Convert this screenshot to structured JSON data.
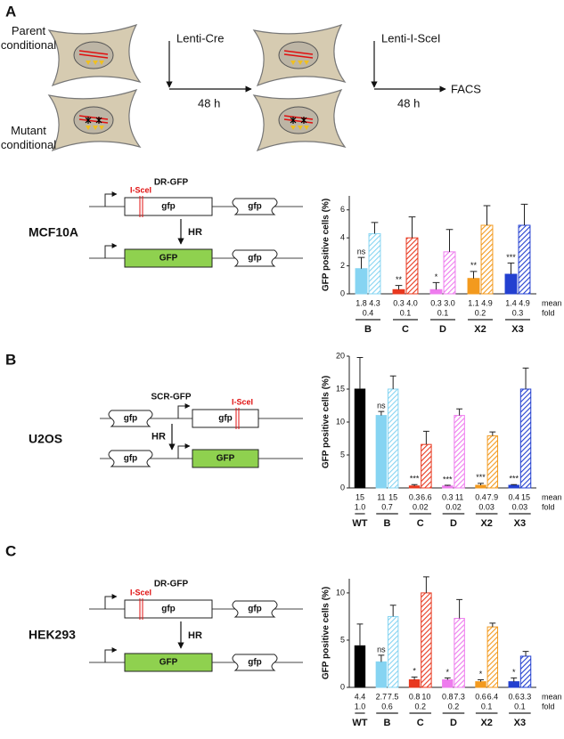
{
  "figure": {
    "panel_a": {
      "label": "A",
      "parent": "Parent conditional",
      "mutant": "Mutant conditional",
      "step1": "Lenti-Cre",
      "time1": "48 h",
      "step2": "Lenti-I-SceI",
      "time2": "48 h",
      "readout": "FACS"
    },
    "reporters": [
      {
        "name": "DR-GFP",
        "cell_line": "MCF10A",
        "site": "I-SceI",
        "hr": "HR",
        "top": [
          "gfp",
          "gfp"
        ],
        "bottom": [
          "GFP",
          "gfp"
        ]
      },
      {
        "panel": "B",
        "name": "SCR-GFP",
        "cell_line": "U2OS",
        "site": "I-SceI",
        "hr": "HR",
        "top": [
          "gfp",
          "gfp"
        ],
        "bottom": [
          "gfp",
          "GFP"
        ]
      },
      {
        "panel": "C",
        "name": "DR-GFP",
        "cell_line": "HEK293",
        "site": "I-SceI",
        "hr": "HR",
        "top": [
          "gfp",
          "gfp"
        ],
        "bottom": [
          "GFP",
          "gfp"
        ]
      }
    ]
  },
  "chart_data": [
    {
      "type": "bar",
      "ylabel": "GFP positive cells (%)",
      "ylim": [
        0,
        7
      ],
      "yticks": [
        0,
        2,
        4,
        6
      ],
      "categories": [
        "B",
        "C",
        "D",
        "X2",
        "X3"
      ],
      "colors": [
        "#86d4f2",
        "#e8381f",
        "#ee7cee",
        "#f39a1e",
        "#2340d0"
      ],
      "series": [
        {
          "pattern": "solid",
          "values": [
            1.8,
            0.3,
            0.3,
            1.1,
            1.4
          ],
          "value_labels": [
            "1.8",
            "0.3",
            "0.3",
            "1.1",
            "1.4"
          ],
          "errors": [
            0.8,
            0.3,
            0.5,
            0.5,
            0.8
          ]
        },
        {
          "pattern": "hatched",
          "values": [
            4.3,
            4.0,
            3.0,
            4.9,
            4.9
          ],
          "value_labels": [
            "4.3",
            "4.0",
            "3.0",
            "4.9",
            "4.9"
          ],
          "errors": [
            0.8,
            1.5,
            1.6,
            1.4,
            1.5
          ]
        }
      ],
      "significance": [
        "ns",
        "**",
        "*",
        "**",
        "***"
      ],
      "fold": [
        "0.4",
        "0.1",
        "0.1",
        "0.2",
        "0.3"
      ],
      "row_labels": [
        "mean",
        "fold"
      ]
    },
    {
      "type": "bar",
      "ylabel": "GFP positive cells (%)",
      "ylim": [
        0,
        20
      ],
      "yticks": [
        0,
        5,
        10,
        15,
        20
      ],
      "categories": [
        "WT",
        "B",
        "C",
        "D",
        "X2",
        "X3"
      ],
      "colors": [
        "#000000",
        "#86d4f2",
        "#e8381f",
        "#ee7cee",
        "#f39a1e",
        "#2340d0"
      ],
      "series": [
        {
          "pattern": "solid",
          "values": [
            15,
            11,
            0.3,
            0.3,
            0.4,
            0.4
          ],
          "value_labels": [
            "15",
            "11",
            "0.3",
            "0.3",
            "0.4",
            "0.4"
          ],
          "errors": [
            4.8,
            0.6,
            0.2,
            0.1,
            0.3,
            0.1
          ]
        },
        {
          "pattern": "hatched",
          "values": [
            null,
            15,
            6.6,
            11,
            7.9,
            15
          ],
          "value_labels": [
            null,
            "15",
            "6.6",
            "11",
            "7.9",
            "15"
          ],
          "errors": [
            null,
            2,
            2,
            1,
            0.6,
            3.2
          ]
        }
      ],
      "significance": [
        null,
        "ns",
        "***",
        "***",
        "***",
        "***"
      ],
      "fold": [
        "1.0",
        "0.7",
        "0.02",
        "0.02",
        "0.03",
        "0.03"
      ],
      "row_labels": [
        "mean",
        "fold"
      ]
    },
    {
      "type": "bar",
      "ylabel": "GFP positive cells (%)",
      "ylim": [
        0,
        11.5
      ],
      "yticks": [
        0,
        5,
        10
      ],
      "categories": [
        "WT",
        "B",
        "C",
        "D",
        "X2",
        "X3"
      ],
      "colors": [
        "#000000",
        "#86d4f2",
        "#e8381f",
        "#ee7cee",
        "#f39a1e",
        "#2340d0"
      ],
      "series": [
        {
          "pattern": "solid",
          "values": [
            4.4,
            2.7,
            0.8,
            0.8,
            0.6,
            0.6
          ],
          "value_labels": [
            "4.4",
            "2.7",
            "0.8",
            "0.8",
            "0.6",
            "0.6"
          ],
          "errors": [
            2.3,
            0.7,
            0.3,
            0.2,
            0.2,
            0.4
          ]
        },
        {
          "pattern": "hatched",
          "values": [
            null,
            7.5,
            10,
            7.3,
            6.4,
            3.3
          ],
          "value_labels": [
            null,
            "7.5",
            "10",
            "7.3",
            "6.4",
            "3.3"
          ],
          "errors": [
            null,
            1.2,
            1.7,
            2,
            0.4,
            0.5
          ]
        }
      ],
      "significance": [
        null,
        "ns",
        "*",
        "*",
        "*",
        "*"
      ],
      "fold": [
        "1.0",
        "0.6",
        "0.2",
        "0.2",
        "0.1",
        "0.1"
      ],
      "row_labels": [
        "mean",
        "fold"
      ]
    }
  ]
}
